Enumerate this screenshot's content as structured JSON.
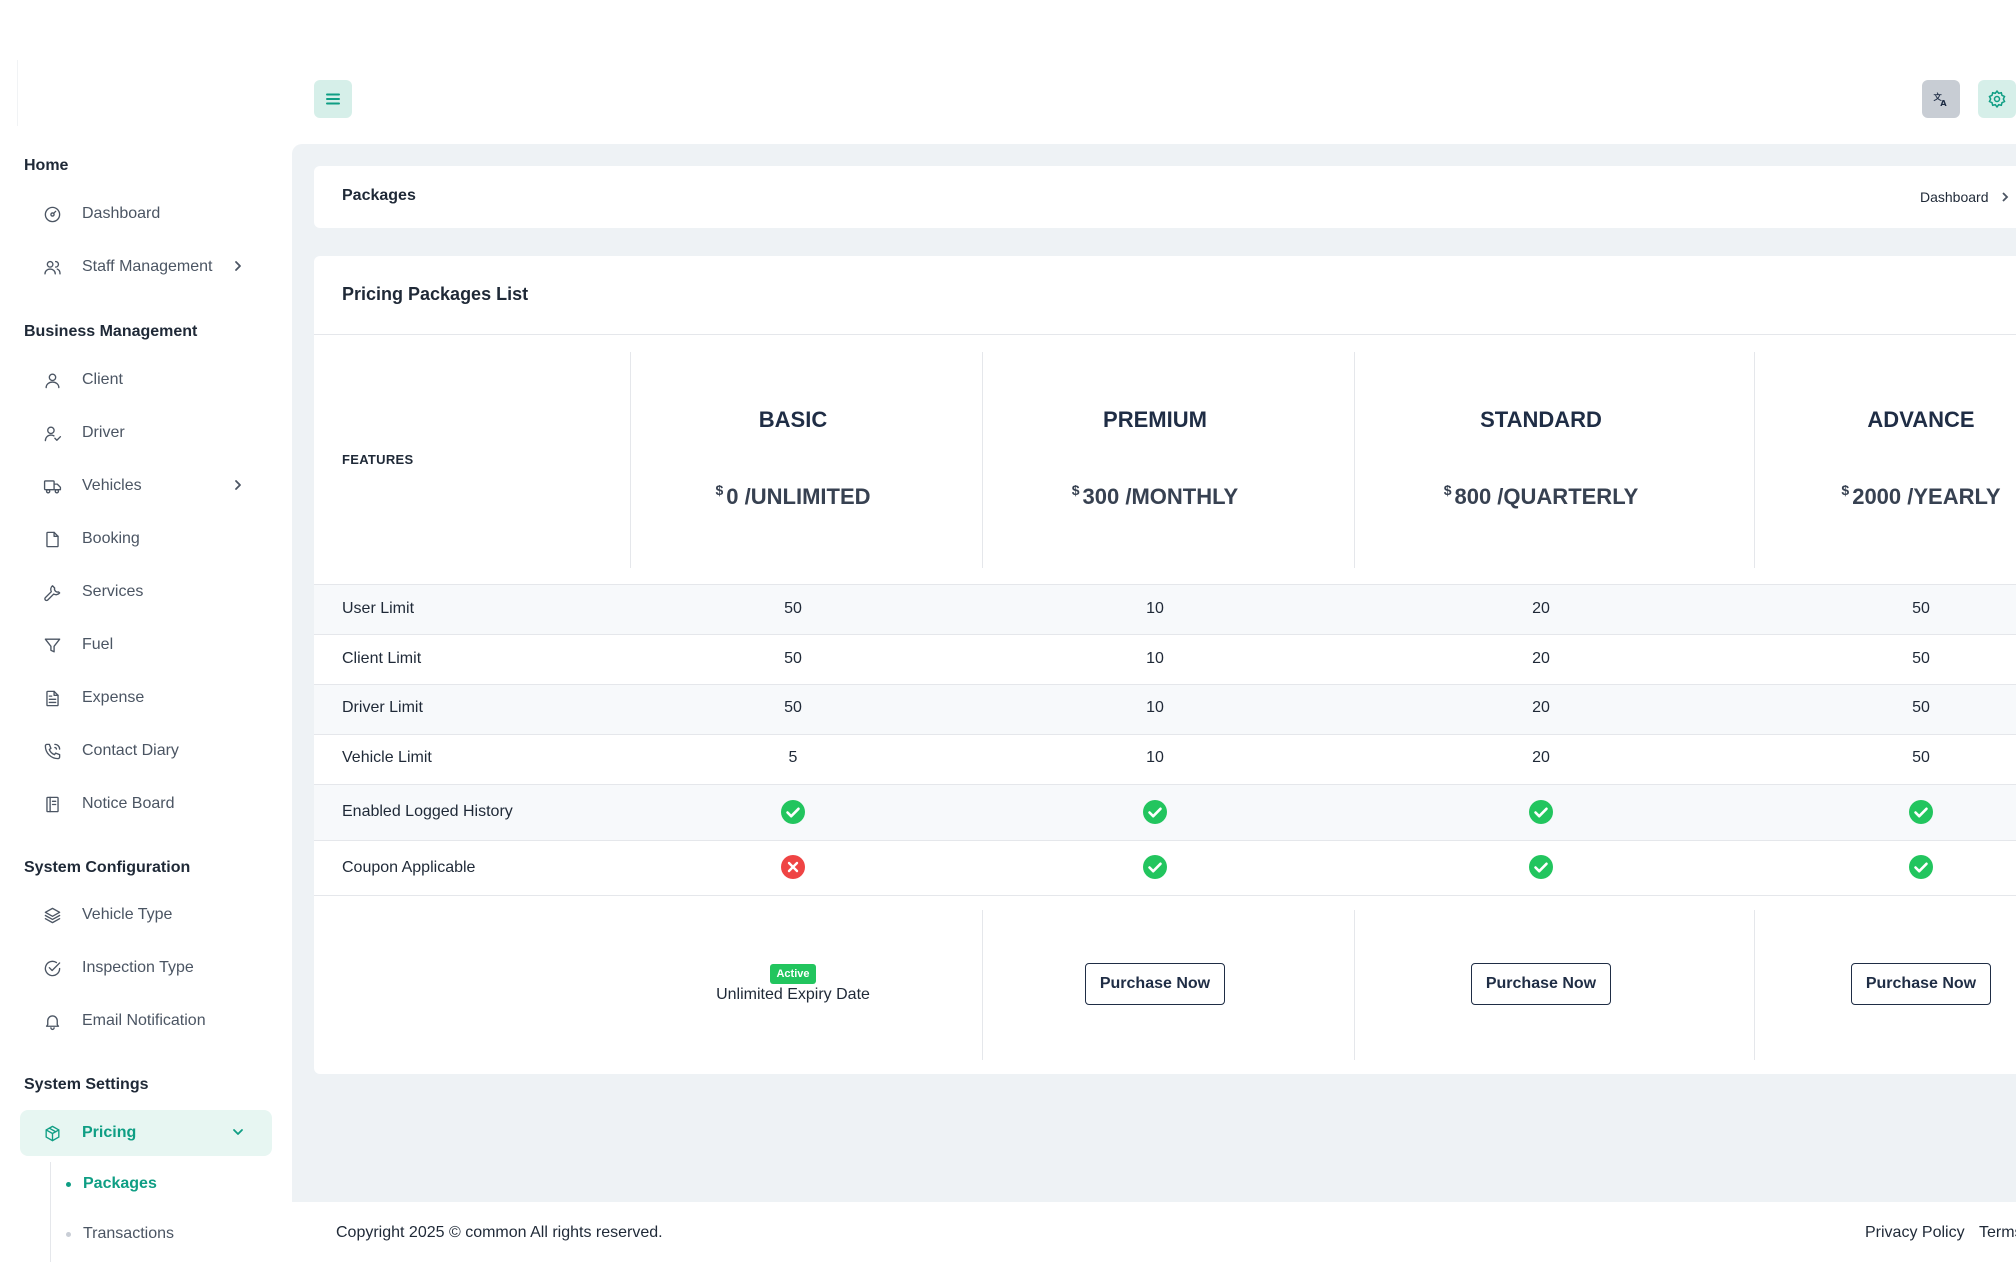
{
  "sidebar": {
    "sections": {
      "home": "Home",
      "business": "Business Management",
      "config": "System Configuration",
      "settings": "System Settings"
    },
    "items": {
      "dashboard": "Dashboard",
      "staff": "Staff Management",
      "client": "Client",
      "driver": "Driver",
      "vehicles": "Vehicles",
      "booking": "Booking",
      "services": "Services",
      "fuel": "Fuel",
      "expense": "Expense",
      "contact_diary": "Contact Diary",
      "notice_board": "Notice Board",
      "vehicle_type": "Vehicle Type",
      "inspection_type": "Inspection Type",
      "email_notification": "Email Notification",
      "pricing": "Pricing"
    },
    "sub_items": {
      "packages": "Packages",
      "transactions": "Transactions"
    }
  },
  "header": {
    "page_title": "Packages",
    "breadcrumb": "Dashboard"
  },
  "pricing": {
    "card_title": "Pricing Packages List",
    "features_label": "FEATURES",
    "currency": "$",
    "plans": [
      {
        "name": "BASIC",
        "price": "0 /UNLIMITED"
      },
      {
        "name": "PREMIUM",
        "price": "300 /MONTHLY"
      },
      {
        "name": "STANDARD",
        "price": "800 /QUARTERLY"
      },
      {
        "name": "ADVANCE",
        "price": "2000 /YEARLY"
      }
    ],
    "rows": [
      {
        "label": "User Limit",
        "values": [
          "50",
          "10",
          "20",
          "50"
        ]
      },
      {
        "label": "Client Limit",
        "values": [
          "50",
          "10",
          "20",
          "50"
        ]
      },
      {
        "label": "Driver Limit",
        "values": [
          "50",
          "10",
          "20",
          "50"
        ]
      },
      {
        "label": "Vehicle Limit",
        "values": [
          "5",
          "10",
          "20",
          "50"
        ]
      },
      {
        "label": "Enabled Logged History",
        "values": [
          "yes",
          "yes",
          "yes",
          "yes"
        ]
      },
      {
        "label": "Coupon Applicable",
        "values": [
          "no",
          "yes",
          "yes",
          "yes"
        ]
      }
    ],
    "active_badge": "Active",
    "expiry_text": "Unlimited Expiry Date",
    "purchase_label": "Purchase Now"
  },
  "footer": {
    "copyright": "Copyright 2025 © common All rights reserved.",
    "privacy": "Privacy Policy",
    "terms": "Terms"
  },
  "colors": {
    "accent": "#0f9e84",
    "success": "#22c55e",
    "danger": "#ef4444"
  }
}
